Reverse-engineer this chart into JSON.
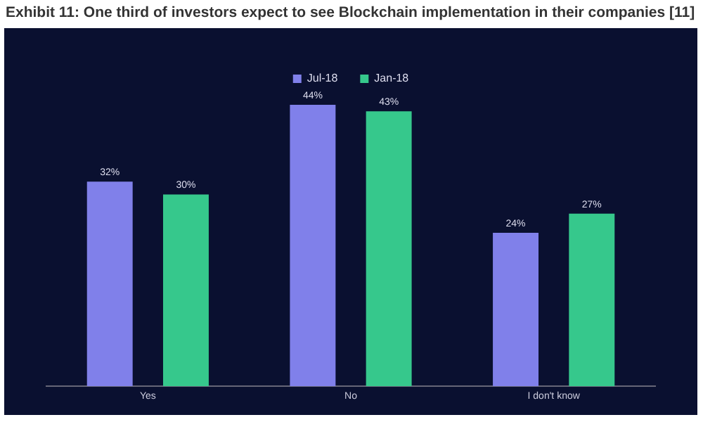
{
  "chart_data": {
    "type": "bar",
    "title": "Exhibit 11: One third of investors expect to see Blockchain implementation in their companies [11]",
    "categories": [
      "Yes",
      "No",
      "I don't know"
    ],
    "series": [
      {
        "name": "Jul-18",
        "color": "#8080ea",
        "values": [
          32,
          44,
          24
        ],
        "value_labels": [
          "32%",
          "44%",
          "24%"
        ]
      },
      {
        "name": "Jan-18",
        "color": "#36c88c",
        "values": [
          30,
          43,
          27
        ],
        "value_labels": [
          "30%",
          "43%",
          "27%"
        ]
      }
    ],
    "tick_labels": "x",
    "legend": "top"
  }
}
